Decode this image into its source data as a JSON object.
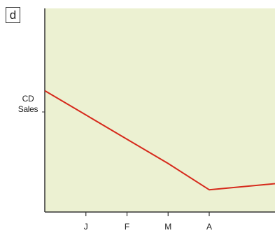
{
  "panel_label": "d",
  "chart_data": {
    "type": "line",
    "ylabel_lines": [
      "CD",
      "Sales"
    ],
    "xlabel": "",
    "categories": [
      "J",
      "F",
      "M",
      "A"
    ],
    "x": [
      -1,
      0,
      1,
      2,
      3,
      4.6
    ],
    "series": [
      {
        "values": [
          0.6,
          0.48,
          0.36,
          0.24,
          0.11,
          0.14
        ],
        "color": "#d62a1c"
      }
    ],
    "ylim": [
      0,
      1
    ],
    "xlim": [
      -1,
      4.6
    ],
    "grid": false,
    "legend": "none",
    "background_color": "#ecf1d2"
  }
}
